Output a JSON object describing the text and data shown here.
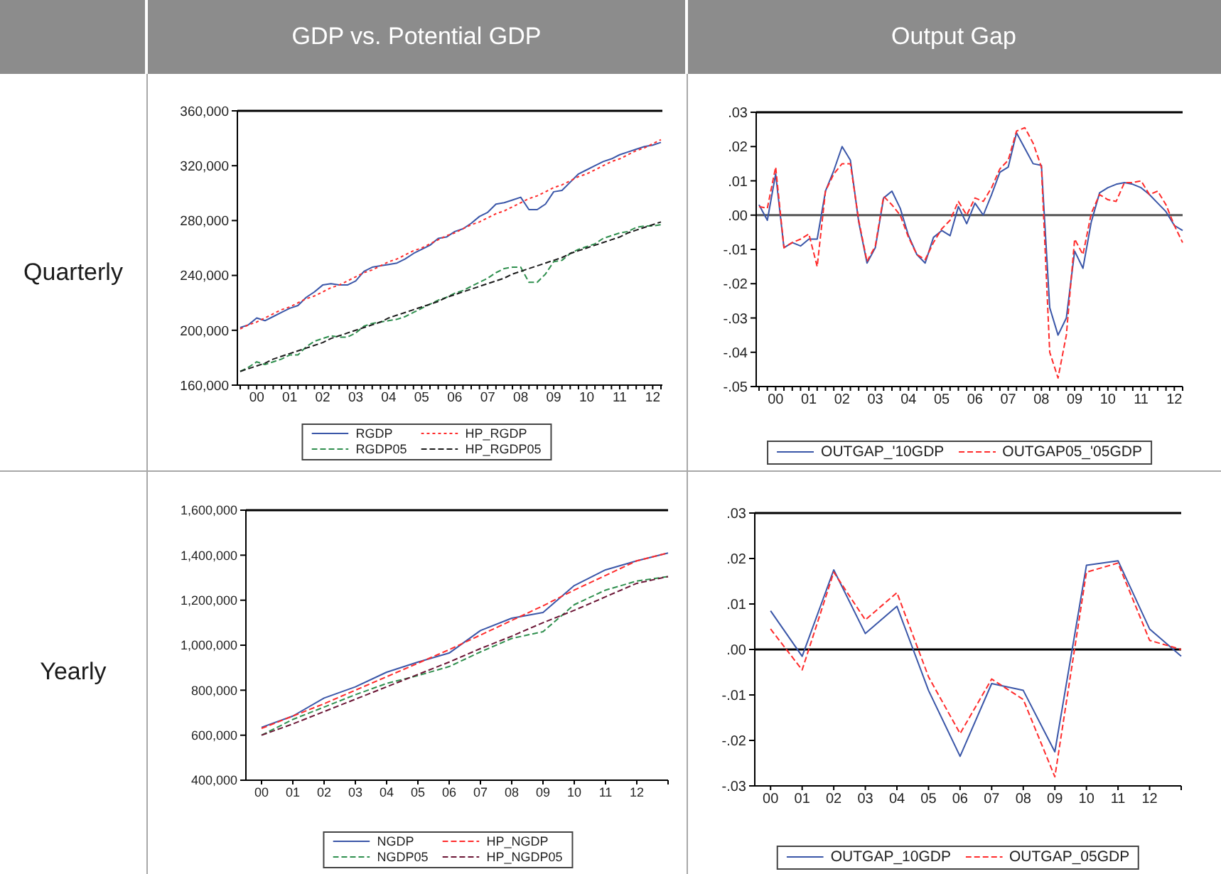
{
  "chart_data": [
    {
      "type": "line",
      "title": "GDP vs. Potential GDP",
      "annotations": [
        "Quarterly"
      ],
      "categories": [
        null,
        null,
        "00",
        null,
        null,
        null,
        "01",
        null,
        null,
        null,
        "02",
        null,
        null,
        null,
        "03",
        null,
        null,
        null,
        "04",
        null,
        null,
        null,
        "05",
        null,
        null,
        null,
        "06",
        null,
        null,
        null,
        "07",
        null,
        null,
        null,
        "08",
        null,
        null,
        null,
        "09",
        null,
        null,
        null,
        "10",
        null,
        null,
        null,
        "11",
        null,
        null,
        null,
        "12",
        null
      ],
      "series": [
        {
          "name": "RGDP",
          "color": "#3a56a8",
          "line_style": "solid",
          "values": [
            202000,
            204000,
            209000,
            207000,
            210000,
            213000,
            216000,
            218000,
            224000,
            228000,
            233000,
            234000,
            233000,
            233000,
            236000,
            243000,
            246000,
            247000,
            248000,
            249000,
            252000,
            256000,
            259000,
            262000,
            267000,
            268000,
            272000,
            274000,
            278000,
            283000,
            286000,
            292000,
            293000,
            295000,
            297000,
            288000,
            288000,
            292000,
            301000,
            302000,
            308000,
            314000,
            317000,
            320000,
            323000,
            325000,
            328000,
            330000,
            332000,
            334000,
            335000,
            337000
          ]
        },
        {
          "name": "HP_RGDP",
          "color": "#ff2b2b",
          "line_style": "dotted",
          "values": [
            201000,
            204000,
            206000,
            209000,
            212000,
            215000,
            217000,
            220000,
            223000,
            225000,
            228000,
            231000,
            233000,
            236000,
            239000,
            242000,
            244000,
            247000,
            250000,
            252000,
            255000,
            258000,
            260000,
            263000,
            266000,
            269000,
            271000,
            274000,
            277000,
            279000,
            282000,
            285000,
            287000,
            290000,
            293000,
            296000,
            298000,
            301000,
            304000,
            306000,
            309000,
            312000,
            314000,
            317000,
            320000,
            323000,
            325000,
            328000,
            331000,
            333000,
            336000,
            339000
          ]
        },
        {
          "name": "RGDP05",
          "color": "#2f8f4e",
          "line_style": "dashed",
          "values": [
            170000,
            173000,
            177000,
            175000,
            177000,
            179000,
            182000,
            182000,
            188000,
            192000,
            194000,
            196000,
            195000,
            195000,
            198000,
            203000,
            205000,
            206000,
            207000,
            208000,
            210000,
            213000,
            216000,
            219000,
            222000,
            224000,
            227000,
            229000,
            232000,
            235000,
            238000,
            242000,
            245000,
            246000,
            246000,
            235000,
            235000,
            241000,
            250000,
            251000,
            256000,
            259000,
            261000,
            263000,
            267000,
            269000,
            271000,
            272000,
            275000,
            276000,
            276000,
            277000
          ]
        },
        {
          "name": "HP_RGDP05",
          "color": "#1a1a1a",
          "line_style": "dashed",
          "values": [
            170000,
            172000,
            174000,
            176000,
            179000,
            181000,
            183000,
            185000,
            187000,
            189000,
            191000,
            194000,
            196000,
            198000,
            200000,
            202000,
            204000,
            206000,
            209000,
            211000,
            213000,
            215000,
            217000,
            219000,
            221000,
            224000,
            226000,
            228000,
            230000,
            232000,
            234000,
            236000,
            238000,
            241000,
            243000,
            245000,
            247000,
            249000,
            251000,
            253000,
            256000,
            258000,
            260000,
            262000,
            264000,
            266000,
            268000,
            271000,
            273000,
            275000,
            277000,
            279000
          ]
        }
      ],
      "ylim": [
        160000,
        360000
      ],
      "yticks": [
        {
          "value": 160000,
          "label": "160,000"
        },
        {
          "value": 200000,
          "label": "200,000"
        },
        {
          "value": 240000,
          "label": "240,000"
        },
        {
          "value": 280000,
          "label": "280,000"
        },
        {
          "value": 320000,
          "label": "320,000"
        },
        {
          "value": 360000,
          "label": "360,000"
        }
      ],
      "legend": "bottom"
    },
    {
      "type": "line",
      "title": "Output Gap",
      "categories": [
        null,
        null,
        "00",
        null,
        null,
        null,
        "01",
        null,
        null,
        null,
        "02",
        null,
        null,
        null,
        "03",
        null,
        null,
        null,
        "04",
        null,
        null,
        null,
        "05",
        null,
        null,
        null,
        "06",
        null,
        null,
        null,
        "07",
        null,
        null,
        null,
        "08",
        null,
        null,
        null,
        "09",
        null,
        null,
        null,
        "10",
        null,
        null,
        null,
        "11",
        null,
        null,
        null,
        "12",
        null
      ],
      "series": [
        {
          "name": "OUTGAP_'10GDP",
          "color": "#3a56a8",
          "line_style": "solid",
          "values": [
            0.003,
            -0.0015,
            0.012,
            -0.0095,
            -0.008,
            -0.009,
            -0.007,
            -0.007,
            0.007,
            0.013,
            0.02,
            0.016,
            -0.002,
            -0.014,
            -0.0095,
            0.005,
            0.007,
            0.002,
            -0.006,
            -0.0115,
            -0.014,
            -0.0065,
            -0.0045,
            -0.006,
            0.0025,
            -0.0025,
            0.0035,
            0,
            0.006,
            0.0125,
            0.014,
            0.024,
            0.0195,
            0.015,
            0.0145,
            -0.027,
            -0.035,
            -0.03,
            -0.0105,
            -0.0155,
            -0.002,
            0.0065,
            0.008,
            0.009,
            0.0095,
            0.009,
            0.008,
            0.006,
            0.0035,
            0.001,
            -0.003,
            -0.0045
          ]
        },
        {
          "name": "OUTGAP05_'05GDP",
          "color": "#ff2b2b",
          "line_style": "dashed",
          "values": [
            0.0025,
            0.002,
            0.014,
            -0.0095,
            -0.008,
            -0.007,
            -0.0055,
            -0.015,
            0.007,
            0.012,
            0.015,
            0.015,
            -0.0015,
            -0.0135,
            -0.009,
            0.0055,
            0.003,
            0,
            -0.0065,
            -0.0115,
            -0.013,
            -0.008,
            -0.004,
            -0.0015,
            0.004,
            0,
            0.005,
            0.004,
            0.008,
            0.0135,
            0.016,
            0.0245,
            0.0255,
            0.021,
            0.014,
            -0.04,
            -0.0475,
            -0.035,
            -0.007,
            -0.0115,
            0.0005,
            0.006,
            0.0045,
            0.004,
            0.0095,
            0.0095,
            0.01,
            0.006,
            0.007,
            0.003,
            -0.003,
            -0.008
          ]
        }
      ],
      "ylim": [
        -0.05,
        0.03
      ],
      "yticks": [
        {
          "value": -0.05,
          "label": "-.05"
        },
        {
          "value": -0.04,
          "label": "-.04"
        },
        {
          "value": -0.03,
          "label": "-.03"
        },
        {
          "value": -0.02,
          "label": "-.02"
        },
        {
          "value": -0.01,
          "label": "-.01"
        },
        {
          "value": 0,
          "label": ".00"
        },
        {
          "value": 0.01,
          "label": ".01"
        },
        {
          "value": 0.02,
          "label": ".02"
        },
        {
          "value": 0.03,
          "label": ".03"
        }
      ],
      "ref_lines": [
        {
          "axis": "y",
          "value": 0,
          "color": "#555555"
        }
      ],
      "legend": "bottom"
    },
    {
      "type": "line",
      "annotations": [
        "Yearly"
      ],
      "categories": [
        "00",
        "01",
        "02",
        "03",
        "04",
        "05",
        "06",
        "07",
        "08",
        "09",
        "10",
        "11",
        "12",
        null
      ],
      "series": [
        {
          "name": "NGDP",
          "color": "#3a56a8",
          "line_style": "solid",
          "values": [
            635000,
            685000,
            765000,
            815000,
            880000,
            925000,
            965000,
            1065000,
            1120000,
            1145000,
            1265000,
            1335000,
            1375000,
            1410000
          ]
        },
        {
          "name": "HP_NGDP",
          "color": "#ff2b2b",
          "line_style": "dashed",
          "values": [
            630000,
            685000,
            740000,
            800000,
            860000,
            920000,
            980000,
            1045000,
            1110000,
            1175000,
            1245000,
            1310000,
            1375000,
            1410000
          ]
        },
        {
          "name": "NGDP05",
          "color": "#2f8f4e",
          "line_style": "dashed",
          "values": [
            600000,
            670000,
            725000,
            780000,
            830000,
            865000,
            905000,
            970000,
            1030000,
            1060000,
            1180000,
            1245000,
            1285000,
            1305000
          ]
        },
        {
          "name": "HP_NGDP05",
          "color": "#6b1535",
          "line_style": "dashed",
          "values": [
            600000,
            650000,
            705000,
            760000,
            815000,
            870000,
            925000,
            985000,
            1040000,
            1100000,
            1155000,
            1215000,
            1275000,
            1305000
          ]
        }
      ],
      "ylim": [
        400000,
        1600000
      ],
      "yticks": [
        {
          "value": 400000,
          "label": "400,000"
        },
        {
          "value": 600000,
          "label": "600,000"
        },
        {
          "value": 800000,
          "label": "800,000"
        },
        {
          "value": 1000000,
          "label": "1,000,000"
        },
        {
          "value": 1200000,
          "label": "1,200,000"
        },
        {
          "value": 1400000,
          "label": "1,400,000"
        },
        {
          "value": 1600000,
          "label": "1,600,000"
        }
      ],
      "legend": "bottom"
    },
    {
      "type": "line",
      "categories": [
        "00",
        "01",
        "02",
        "03",
        "04",
        "05",
        "06",
        "07",
        "08",
        "09",
        "10",
        "11",
        "12",
        null
      ],
      "series": [
        {
          "name": "OUTGAP_10GDP",
          "color": "#3a56a8",
          "line_style": "solid",
          "values": [
            0.0085,
            -0.0015,
            0.0175,
            0.0035,
            0.0095,
            -0.009,
            -0.0235,
            -0.0075,
            -0.009,
            -0.0225,
            0.0185,
            0.0195,
            0.0045,
            -0.0015
          ]
        },
        {
          "name": "OUTGAP_05GDP",
          "color": "#ff2b2b",
          "line_style": "dashed",
          "values": [
            0.0045,
            -0.0045,
            0.017,
            0.0065,
            0.0125,
            -0.006,
            -0.0185,
            -0.0065,
            -0.011,
            -0.028,
            0.017,
            0.019,
            0.002,
            0
          ]
        }
      ],
      "ylim": [
        -0.03,
        0.03
      ],
      "yticks": [
        {
          "value": -0.03,
          "label": "-.03"
        },
        {
          "value": -0.02,
          "label": "-.02"
        },
        {
          "value": -0.01,
          "label": "-.01"
        },
        {
          "value": 0,
          "label": ".00"
        },
        {
          "value": 0.01,
          "label": ".01"
        },
        {
          "value": 0.02,
          "label": ".02"
        },
        {
          "value": 0.03,
          "label": ".03"
        }
      ],
      "ref_lines": [
        {
          "axis": "y",
          "value": 0,
          "color": "#000000"
        }
      ],
      "legend": "bottom"
    }
  ]
}
